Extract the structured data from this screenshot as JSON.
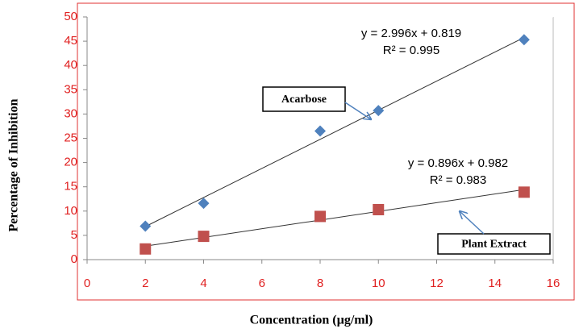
{
  "chart_data": {
    "type": "scatter",
    "x_label": "Concentration  (µg/ml)",
    "y_label": "Percentage of Inhibition",
    "xlim": [
      0,
      16
    ],
    "xticks": [
      0,
      2,
      4,
      6,
      8,
      10,
      12,
      14,
      16
    ],
    "ylim": [
      0,
      50
    ],
    "yticks": [
      0,
      5,
      10,
      15,
      20,
      25,
      30,
      35,
      40,
      45,
      50
    ],
    "grid": false,
    "series": [
      {
        "name": "Acarbose",
        "color": "#4f81bd",
        "marker": "diamond",
        "x": [
          2,
          4,
          8,
          10,
          15
        ],
        "values": [
          6.9,
          11.6,
          26.5,
          30.7,
          45.3
        ],
        "trendline": {
          "slope": 2.996,
          "intercept": 0.819,
          "equation": "y = 2.996x + 0.819",
          "r2": "R² = 0.995"
        }
      },
      {
        "name": "Plant Extract",
        "color": "#c0504d",
        "marker": "square",
        "x": [
          2,
          4,
          8,
          10,
          15
        ],
        "values": [
          2.2,
          4.8,
          8.9,
          10.3,
          13.9
        ],
        "trendline": {
          "slope": 0.896,
          "intercept": 0.982,
          "equation": "y = 0.896x + 0.982",
          "r2": "R² = 0.983"
        }
      }
    ]
  }
}
